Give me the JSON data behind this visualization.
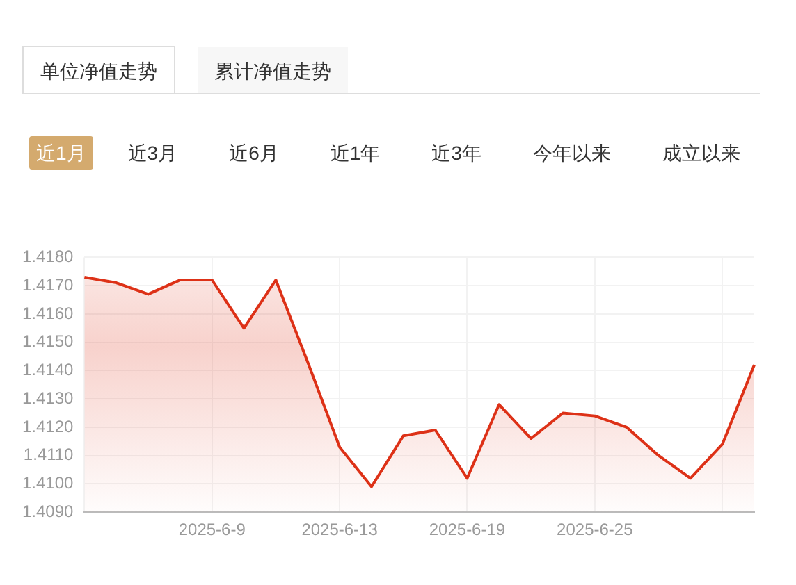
{
  "chart_data": {
    "type": "area",
    "annotations": [
      "单位净值走势",
      "累计净值走势",
      "近1月",
      "近3月",
      "近6月",
      "近1年",
      "近3年",
      "今年以来",
      "成立以来"
    ],
    "categories": [
      null,
      null,
      null,
      null,
      "2025-6-9",
      null,
      null,
      null,
      "2025-6-13",
      null,
      null,
      null,
      "2025-6-19",
      null,
      null,
      null,
      "2025-6-25",
      null,
      null,
      null,
      null,
      null
    ],
    "series": [
      {
        "color": "#dd3117",
        "values": [
          1.4173,
          1.4171,
          1.4167,
          1.4172,
          1.4172,
          1.4155,
          1.4172,
          1.4143,
          1.4113,
          1.4099,
          1.4117,
          1.4119,
          1.4102,
          1.4128,
          1.4116,
          1.4125,
          1.4124,
          1.412,
          1.411,
          1.4102,
          1.4114,
          1.4142
        ]
      }
    ],
    "ylim": [
      1.409,
      1.418
    ],
    "yticks": [
      {
        "value": 1.409,
        "label": "1.4090"
      },
      {
        "value": 1.41,
        "label": "1.4100"
      },
      {
        "value": 1.411,
        "label": "1.4110"
      },
      {
        "value": 1.412,
        "label": "1.4120"
      },
      {
        "value": 1.413,
        "label": "1.4130"
      },
      {
        "value": 1.414,
        "label": "1.4140"
      },
      {
        "value": 1.415,
        "label": "1.4150"
      },
      {
        "value": 1.416,
        "label": "1.4160"
      },
      {
        "value": 1.417,
        "label": "1.4170"
      },
      {
        "value": 1.418,
        "label": "1.4180"
      }
    ],
    "grid": true,
    "legend": false,
    "marker": "none",
    "line_style": "solid"
  }
}
